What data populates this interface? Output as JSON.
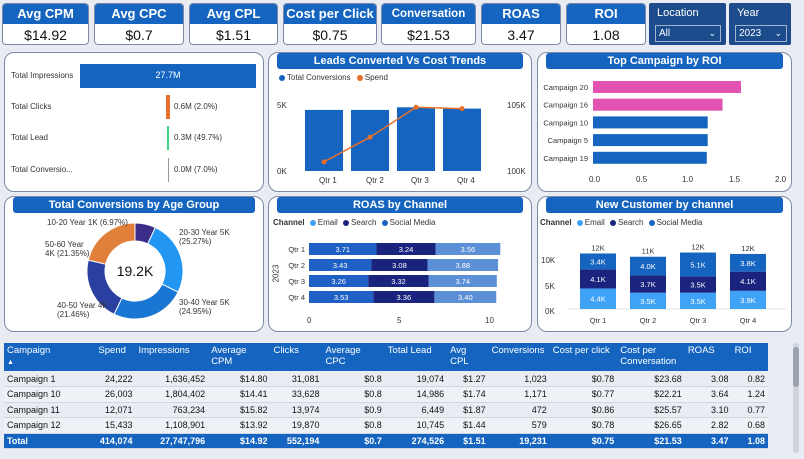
{
  "kpis": [
    {
      "title": "Avg CPM",
      "value": "$14.92"
    },
    {
      "title": "Avg CPC",
      "value": "$0.7"
    },
    {
      "title": "Avg CPL",
      "value": "$1.51"
    },
    {
      "title": "Cost per Click",
      "value": "$0.75"
    },
    {
      "title": "Conversation cost",
      "value": "$21.53"
    },
    {
      "title": "ROAS",
      "value": "3.47"
    },
    {
      "title": "ROI",
      "value": "1.08"
    }
  ],
  "filters": {
    "location": {
      "label": "Location",
      "value": "All"
    },
    "year": {
      "label": "Year",
      "value": "2023"
    }
  },
  "funnel": {
    "rows": [
      {
        "label": "Total Impressions",
        "value": "27.7M"
      },
      {
        "label": "Total Clicks",
        "value": "0.6M (2.0%)"
      },
      {
        "label": "Total Lead",
        "value": "0.3M (49.7%)"
      },
      {
        "label": "Total Conversio...",
        "value": "0.0M (7.0%)"
      }
    ]
  },
  "leads_chart": {
    "title": "Leads Converted Vs Cost Trends",
    "legend": [
      "Total Conversions",
      "Spend"
    ],
    "y_left": [
      "5K",
      "0K"
    ],
    "y_right": [
      "105K",
      "100K"
    ],
    "categories": [
      "Qtr 1",
      "Qtr 2",
      "Qtr 3",
      "Qtr 4"
    ]
  },
  "roi_chart": {
    "title": "Top Campaign by ROI",
    "x_ticks": [
      "0.0",
      "0.5",
      "1.0",
      "1.5",
      "2.0"
    ]
  },
  "age_chart": {
    "title": "Total Conversions by Age Group",
    "center": "19.2K",
    "labels": [
      {
        "text": "10-20 Year 1K (6.97%)"
      },
      {
        "text": "20-30 Year 5K (25.27%)"
      },
      {
        "text": "30-40 Year 5K (24.95%)"
      },
      {
        "text": "40-50 Year 4K (21.46%)"
      },
      {
        "text": "50-60 Year 4K (21.35%)"
      }
    ]
  },
  "roas_chart": {
    "title": "ROAS by Channel",
    "legend_title": "Channel",
    "legend": [
      "Email",
      "Search",
      "Social Media"
    ],
    "year_label": "2023",
    "x_ticks": [
      "0",
      "5",
      "10"
    ]
  },
  "newcust_chart": {
    "title": "New Customer by channel",
    "legend_title": "Channel",
    "legend": [
      "Email",
      "Search",
      "Social Media"
    ],
    "y_ticks": [
      "10K",
      "5K",
      "0K"
    ]
  },
  "table": {
    "headers": [
      "Campaign",
      "Spend",
      "Impressions",
      "Average CPM",
      "Clicks",
      "Average CPC",
      "Total Lead",
      "Avg CPL",
      "Conversions",
      "Cost per click",
      "Cost per Conversation",
      "ROAS",
      "ROI"
    ],
    "rows": [
      [
        "Campaign 1",
        "24,222",
        "1,636,452",
        "$14.80",
        "31,081",
        "$0.8",
        "19,074",
        "$1.27",
        "1,023",
        "$0.78",
        "$23.68",
        "3.08",
        "0.82"
      ],
      [
        "Campaign 10",
        "26,003",
        "1,804,402",
        "$14.41",
        "33,628",
        "$0.8",
        "14,986",
        "$1.74",
        "1,171",
        "$0.77",
        "$22.21",
        "3.64",
        "1.24"
      ],
      [
        "Campaign 11",
        "12,071",
        "763,234",
        "$15.82",
        "13,974",
        "$0.9",
        "6,449",
        "$1.87",
        "472",
        "$0.86",
        "$25.57",
        "3.10",
        "0.77"
      ],
      [
        "Campaign 12",
        "15,433",
        "1,108,901",
        "$13.92",
        "19,870",
        "$0.8",
        "10,745",
        "$1.44",
        "579",
        "$0.78",
        "$26.65",
        "2.82",
        "0.68"
      ]
    ],
    "total": [
      "Total",
      "414,074",
      "27,747,796",
      "$14.92",
      "552,194",
      "$0.7",
      "274,526",
      "$1.51",
      "19,231",
      "$0.75",
      "$21.53",
      "3.47",
      "1.08"
    ]
  },
  "chart_data": [
    {
      "type": "bar",
      "title": "Leads Converted Vs Cost Trends",
      "categories": [
        "Qtr 1",
        "Qtr 2",
        "Qtr 3",
        "Qtr 4"
      ],
      "series": [
        {
          "name": "Total Conversions",
          "values": [
            4700,
            4700,
            4900,
            4800
          ]
        },
        {
          "name": "Spend",
          "values": [
            100700,
            102600,
            104900,
            104800
          ]
        }
      ],
      "ylim_left": [
        0,
        6000
      ],
      "ylim_right": [
        100000,
        106000
      ],
      "colors": {
        "Total Conversions": "#1565c0",
        "Spend": "#e8702a"
      }
    },
    {
      "type": "bar",
      "title": "Top Campaign by ROI",
      "categories": [
        "Campaign 20",
        "Campaign 16",
        "Campaign 10",
        "Campaign 5",
        "Campaign 19"
      ],
      "values": [
        1.6,
        1.4,
        1.24,
        1.24,
        1.23
      ],
      "xlim": [
        0,
        2
      ],
      "colors": [
        "#e252b0",
        "#e252b0",
        "#1565c0",
        "#1565c0",
        "#1565c0"
      ]
    },
    {
      "type": "pie",
      "title": "Total Conversions by Age Group",
      "categories": [
        "10-20 Year",
        "20-30 Year",
        "30-40 Year",
        "40-50 Year",
        "50-60 Year"
      ],
      "values": [
        6.97,
        25.27,
        24.95,
        21.46,
        21.35
      ],
      "colors": [
        "#3b2e8a",
        "#2196f3",
        "#1976d2",
        "#2a3fa0",
        "#e0803a"
      ]
    },
    {
      "type": "bar",
      "title": "ROAS by Channel",
      "categories": [
        "Qtr 1",
        "Qtr 2",
        "Qtr 3",
        "Qtr 4"
      ],
      "series": [
        {
          "name": "Email",
          "values": [
            3.71,
            3.43,
            3.26,
            3.53
          ]
        },
        {
          "name": "Search",
          "values": [
            3.24,
            3.08,
            3.32,
            3.36
          ]
        },
        {
          "name": "Social Media",
          "values": [
            3.56,
            3.88,
            3.74,
            3.4
          ]
        }
      ],
      "xlim": [
        0,
        10
      ],
      "colors": {
        "Email": "#1f60c4",
        "Search": "#1a237e",
        "Social Media": "#5b8fd6"
      }
    },
    {
      "type": "bar",
      "title": "New Customer by channel",
      "categories": [
        "Qtr 1",
        "Qtr 2",
        "Qtr 3",
        "Qtr 4"
      ],
      "totals": [
        "12K",
        "11K",
        "12K",
        "12K"
      ],
      "series": [
        {
          "name": "Email",
          "values": [
            4.4,
            3.5,
            3.5,
            3.9
          ]
        },
        {
          "name": "Search",
          "values": [
            4.1,
            3.7,
            3.5,
            4.1
          ]
        },
        {
          "name": "Social Media",
          "values": [
            3.4,
            4.0,
            5.1,
            3.8
          ]
        }
      ],
      "ylim": [
        0,
        12
      ],
      "colors": {
        "Email": "#3fa2f7",
        "Search": "#1a237e",
        "Social Media": "#1565c0"
      }
    }
  ]
}
